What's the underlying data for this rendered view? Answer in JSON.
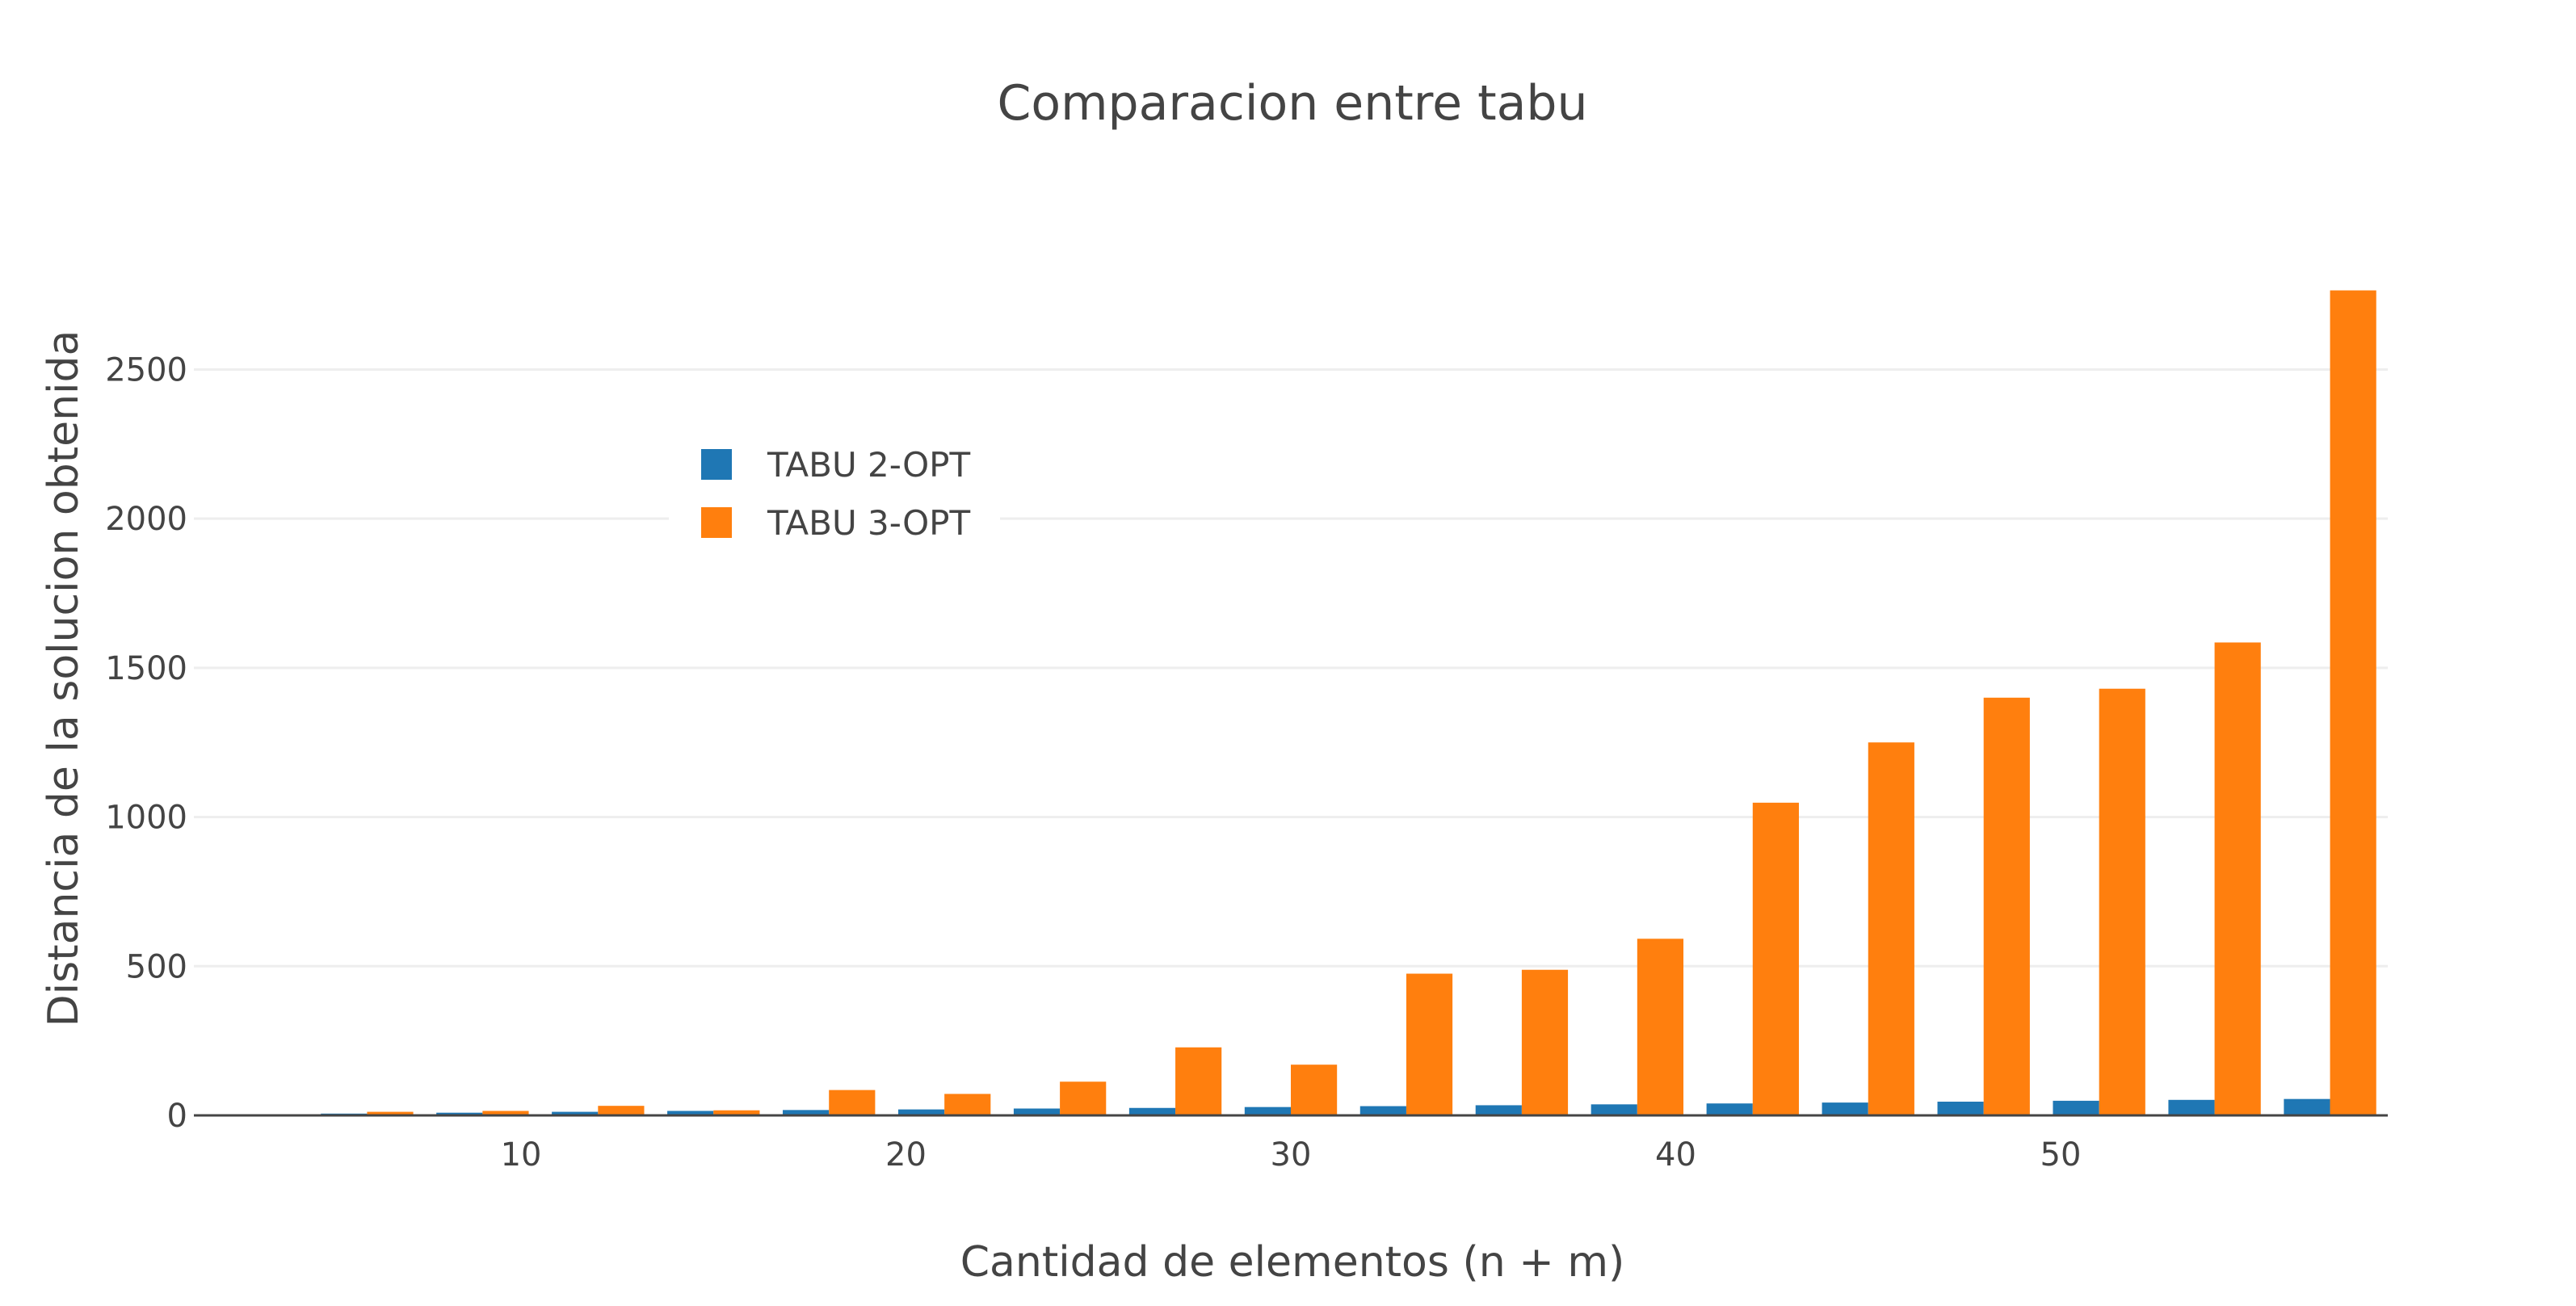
{
  "chart_data": {
    "type": "bar",
    "title": "Comparacion entre tabu",
    "xlabel": "Cantidad de elementos (n + m)",
    "ylabel": "Distancia de la solucion obtenida",
    "x": [
      6,
      9,
      12,
      15,
      18,
      21,
      24,
      27,
      30,
      33,
      36,
      39,
      42,
      45,
      48,
      51,
      54,
      57
    ],
    "xlim": [
      1.5,
      58.5
    ],
    "ylim": [
      0,
      2780
    ],
    "xticks": [
      10,
      20,
      30,
      40,
      50
    ],
    "yticks": [
      0,
      500,
      1000,
      1500,
      2000,
      2500
    ],
    "grid": true,
    "legend_position": "upper-left",
    "series": [
      {
        "name": "TABU 2-OPT",
        "color": "#1f77b4",
        "values": [
          6,
          9,
          12,
          15,
          18,
          20,
          23,
          25,
          28,
          31,
          34,
          37,
          40,
          43,
          46,
          49,
          52,
          55
        ]
      },
      {
        "name": "TABU 3-OPT",
        "color": "#ff7f0e",
        "values": [
          12,
          15,
          32,
          17,
          85,
          72,
          113,
          228,
          170,
          475,
          488,
          592,
          1048,
          1250,
          1400,
          1430,
          1585,
          2765
        ]
      }
    ]
  }
}
